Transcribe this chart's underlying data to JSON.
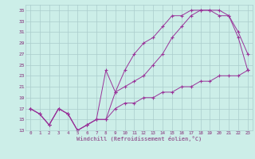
{
  "xlabel": "Windchill (Refroidissement éolien,°C)",
  "background_color": "#cceee8",
  "grid_color": "#aacccc",
  "line_color": "#993399",
  "spine_color": "#996699",
  "xlim": [
    -0.5,
    23.5
  ],
  "ylim": [
    13,
    36
  ],
  "yticks": [
    13,
    15,
    17,
    19,
    21,
    23,
    25,
    27,
    29,
    31,
    33,
    35
  ],
  "xticks": [
    0,
    1,
    2,
    3,
    4,
    5,
    6,
    7,
    8,
    9,
    10,
    11,
    12,
    13,
    14,
    15,
    16,
    17,
    18,
    19,
    20,
    21,
    22,
    23
  ],
  "line1_x": [
    0,
    1,
    2,
    3,
    4,
    5,
    6,
    7,
    8,
    9,
    10,
    11,
    12,
    13,
    14,
    15,
    16,
    17,
    18,
    19,
    20,
    21,
    22,
    23
  ],
  "line1_y": [
    17,
    16,
    14,
    17,
    16,
    13,
    14,
    15,
    15,
    20,
    24,
    27,
    29,
    30,
    32,
    34,
    34,
    35,
    35,
    35,
    35,
    34,
    31,
    27
  ],
  "line2_x": [
    0,
    1,
    2,
    3,
    4,
    5,
    6,
    7,
    8,
    9,
    10,
    11,
    12,
    13,
    14,
    15,
    16,
    17,
    18,
    19,
    20,
    21,
    22,
    23
  ],
  "line2_y": [
    17,
    16,
    14,
    17,
    16,
    13,
    14,
    15,
    24,
    20,
    21,
    22,
    23,
    25,
    27,
    30,
    32,
    34,
    35,
    35,
    34,
    34,
    30,
    24
  ],
  "line3_x": [
    0,
    1,
    2,
    3,
    4,
    5,
    6,
    7,
    8,
    9,
    10,
    11,
    12,
    13,
    14,
    15,
    16,
    17,
    18,
    19,
    20,
    21,
    22,
    23
  ],
  "line3_y": [
    17,
    16,
    14,
    17,
    16,
    13,
    14,
    15,
    15,
    17,
    18,
    18,
    19,
    19,
    20,
    20,
    21,
    21,
    22,
    22,
    23,
    23,
    23,
    24
  ]
}
